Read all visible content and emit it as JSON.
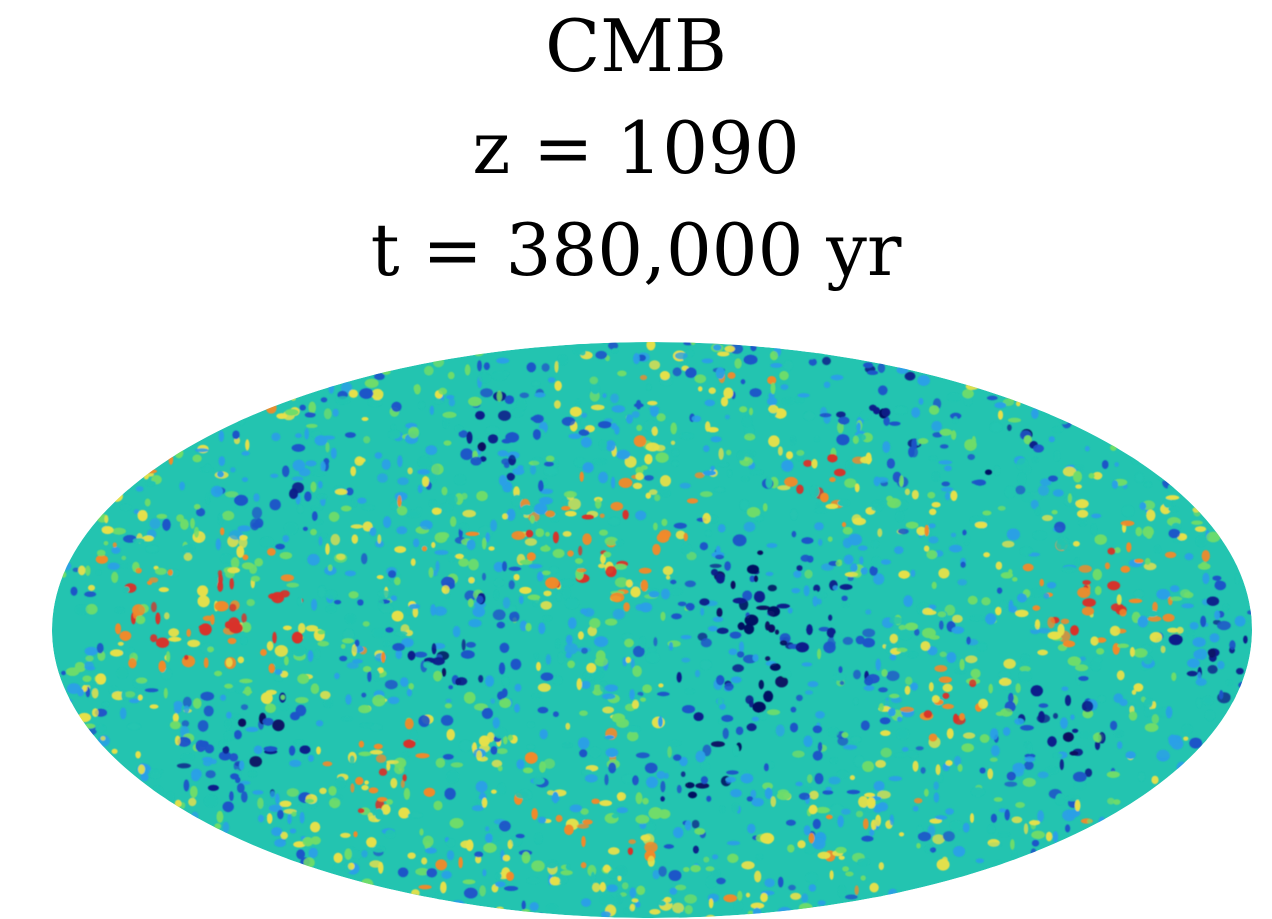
{
  "labels": {
    "title": "CMB",
    "redshift": "z = 1090",
    "time": "t = 380,000 yr"
  },
  "map": {
    "colors": {
      "base": "#23c4b0",
      "green": "#6fdc6a",
      "yellow": "#e6e04a",
      "orange": "#f08a2a",
      "red": "#d8322a",
      "lightblue": "#2aa0e6",
      "blue": "#1f55c8",
      "darkblue": "#0b1f8a",
      "navy": "#071060"
    }
  }
}
